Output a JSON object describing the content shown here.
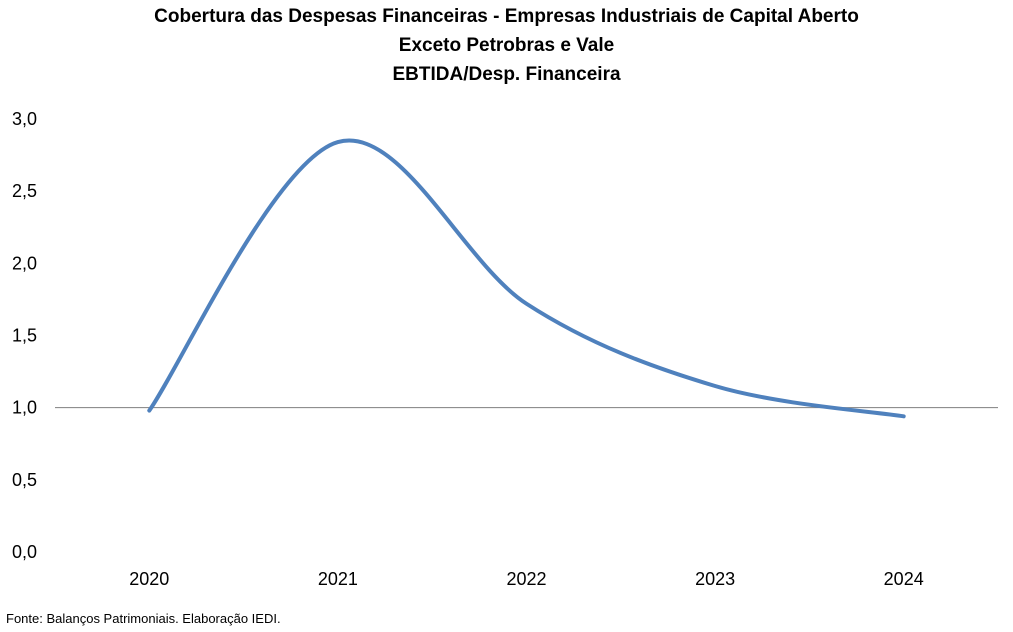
{
  "chart_data": {
    "type": "line",
    "title_lines": [
      "Cobertura das Despesas Financeiras - Empresas Industriais de Capital Aberto",
      "Exceto Petrobras e Vale",
      "EBTIDA/Desp. Financeira"
    ],
    "x": [
      "2020",
      "2021",
      "2022",
      "2023",
      "2024"
    ],
    "series": [
      {
        "values": [
          0.98,
          2.84,
          1.72,
          1.15,
          0.94
        ],
        "color": "#4F81BD"
      }
    ],
    "y_ticks": [
      "3,0",
      "2,5",
      "2,0",
      "1,5",
      "1,0",
      "0,5",
      "0,0"
    ],
    "ylim": [
      0,
      3
    ],
    "reference_line": 1.0,
    "grid": false,
    "legend": "none",
    "smooth": true
  },
  "source": "Fonte: Balanços Patrimoniais. Elaboração IEDI."
}
